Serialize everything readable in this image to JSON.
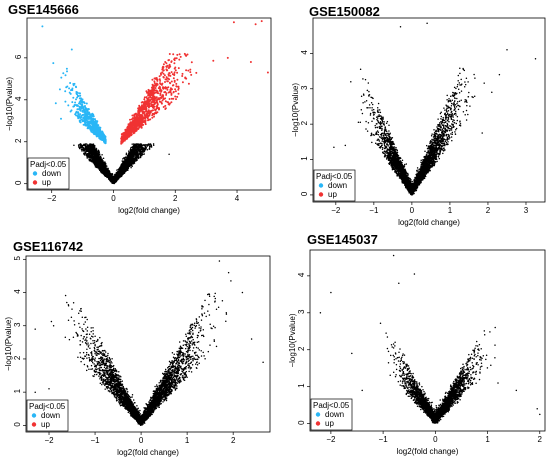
{
  "chart_data": [
    {
      "type": "scatter",
      "title": "GSE145666",
      "xlabel": "log2(fold change)",
      "ylabel": "−log10(Pvalue)",
      "xlim": [
        -2.8,
        5.1
      ],
      "ylim": [
        -0.3,
        7.9
      ],
      "xticks": [
        -2,
        0,
        2,
        4
      ],
      "yticks": [
        0,
        2,
        4,
        6
      ],
      "legend": {
        "title": "Padj<0.05",
        "position": "bottom-left",
        "items": [
          {
            "label": "down",
            "color": "#29b6f6"
          },
          {
            "label": "up",
            "color": "#f03232"
          }
        ]
      },
      "threshold": 1.9,
      "cloud": {
        "spread_up": 0.75,
        "spread_down": 0.6,
        "max_y": 6.2,
        "n_black": 4200,
        "n_color": 2000
      },
      "highlight_points": [
        [
          -2.3,
          7.5
        ],
        [
          -1.95,
          5.75
        ],
        [
          -1.35,
          6.4
        ],
        [
          -1.7,
          3.1
        ],
        [
          3.9,
          7.7
        ],
        [
          4.6,
          7.6
        ],
        [
          4.8,
          7.75
        ],
        [
          5.0,
          5.3
        ],
        [
          4.45,
          5.8
        ],
        [
          3.7,
          6.0
        ]
      ],
      "outlier_points": [
        [
          -1.9,
          1.1
        ],
        [
          1.8,
          1.4
        ],
        [
          -1.5,
          0.85
        ]
      ]
    },
    {
      "type": "scatter",
      "title": "GSE150082",
      "xlabel": "log2(fold change)",
      "ylabel": "−log10(Pvalue)",
      "xlim": [
        -2.6,
        3.5
      ],
      "ylim": [
        -0.2,
        5.0
      ],
      "xticks": [
        -2,
        -1,
        0,
        1,
        2,
        3
      ],
      "yticks": [
        0,
        1,
        2,
        3,
        4
      ],
      "legend": {
        "title": "Padj<0.05",
        "position": "bottom-left",
        "items": [
          {
            "label": "down",
            "color": "#29b6f6"
          },
          {
            "label": "up",
            "color": "#f03232"
          }
        ]
      },
      "threshold": null,
      "cloud": {
        "spread_up": 0.55,
        "spread_down": 0.45,
        "max_y": 3.6,
        "n_black": 4000,
        "n_color": 0
      },
      "highlight_points": [
        [
          -0.3,
          4.75
        ],
        [
          0.4,
          4.85
        ],
        [
          2.5,
          4.1
        ],
        [
          3.25,
          3.85
        ],
        [
          2.1,
          2.9
        ],
        [
          -1.75,
          1.4
        ],
        [
          -2.05,
          1.35
        ]
      ],
      "outlier_points": [
        [
          1.85,
          1.75
        ],
        [
          -1.3,
          2.3
        ],
        [
          2.3,
          3.4
        ]
      ]
    },
    {
      "type": "scatter",
      "title": "GSE116742",
      "xlabel": "log2(fold change)",
      "ylabel": "−log10(Pvalue)",
      "xlim": [
        -2.5,
        2.8
      ],
      "ylim": [
        -0.2,
        5.1
      ],
      "xticks": [
        -2,
        -1,
        0,
        1,
        2
      ],
      "yticks": [
        0,
        1,
        2,
        3,
        4,
        5
      ],
      "legend": {
        "title": "Padj<0.05",
        "position": "bottom-left",
        "items": [
          {
            "label": "down",
            "color": "#29b6f6"
          },
          {
            "label": "up",
            "color": "#f03232"
          }
        ]
      },
      "threshold": null,
      "cloud": {
        "spread_up": 0.6,
        "spread_down": 0.55,
        "max_y": 4.0,
        "n_black": 4200,
        "n_color": 0
      },
      "highlight_points": [
        [
          1.7,
          4.95
        ],
        [
          1.9,
          4.6
        ],
        [
          2.2,
          4.0
        ],
        [
          -2.3,
          2.9
        ],
        [
          -1.5,
          3.5
        ],
        [
          2.65,
          1.9
        ],
        [
          -2.0,
          1.1
        ],
        [
          1.95,
          4.35
        ]
      ],
      "outlier_points": [
        [
          -2.3,
          1.0
        ],
        [
          2.4,
          2.6
        ],
        [
          -1.9,
          3.0
        ]
      ]
    },
    {
      "type": "scatter",
      "title": "GSE145037",
      "xlabel": "log2(fold change)",
      "ylabel": "−log10(Pvalue)",
      "xlim": [
        -2.4,
        2.1
      ],
      "ylim": [
        -0.2,
        4.7
      ],
      "xticks": [
        -2,
        -1,
        0,
        1,
        2
      ],
      "yticks": [
        0,
        1,
        2,
        3,
        4
      ],
      "legend": {
        "title": "Padj<0.05",
        "position": "bottom-left",
        "items": [
          {
            "label": "down",
            "color": "#29b6f6"
          },
          {
            "label": "up",
            "color": "#f03232"
          }
        ]
      },
      "threshold": null,
      "cloud": {
        "spread_up": 0.35,
        "spread_down": 0.3,
        "max_y": 3.0,
        "n_black": 3200,
        "n_color": 0
      },
      "highlight_points": [
        [
          -0.8,
          4.55
        ],
        [
          -0.4,
          4.05
        ],
        [
          -2.0,
          3.55
        ],
        [
          -2.2,
          3.0
        ],
        [
          1.95,
          0.4
        ],
        [
          2.0,
          0.25
        ],
        [
          1.55,
          0.9
        ],
        [
          -0.7,
          3.8
        ]
      ],
      "outlier_points": [
        [
          -1.4,
          0.9
        ],
        [
          1.2,
          1.1
        ],
        [
          -1.6,
          1.9
        ]
      ]
    }
  ]
}
